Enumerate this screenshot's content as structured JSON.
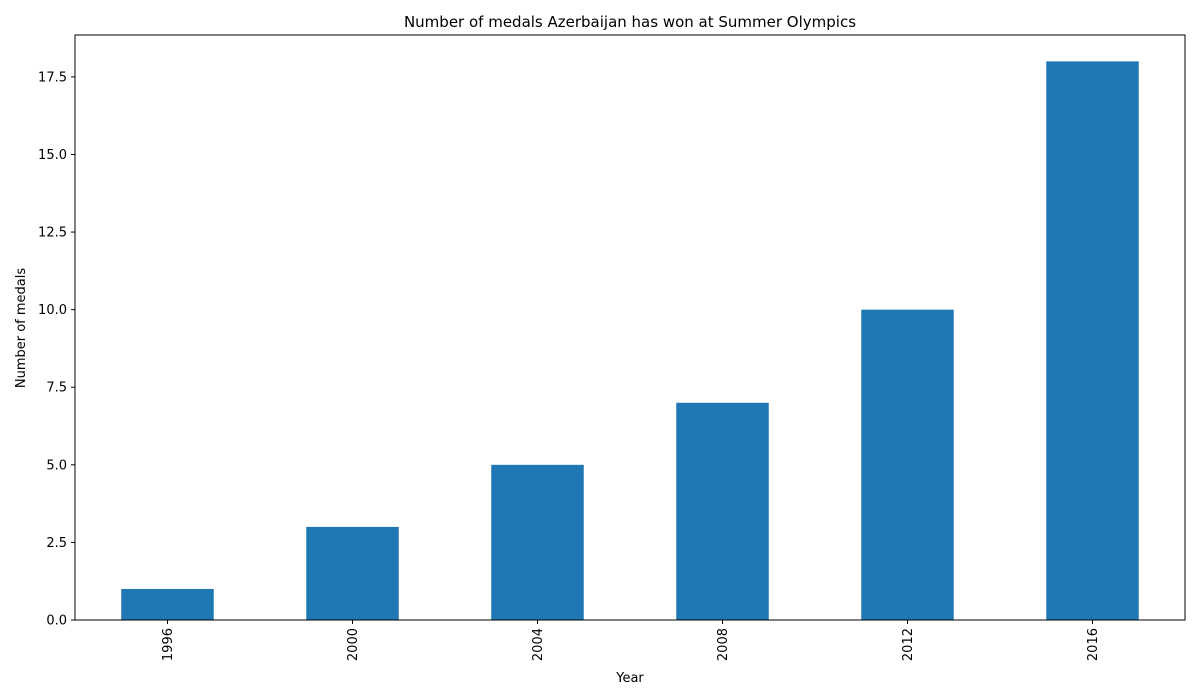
{
  "chart_data": {
    "type": "bar",
    "title": "Number of medals Azerbaijan has won at Summer Olympics",
    "xlabel": "Year",
    "ylabel": "Number of medals",
    "categories": [
      "1996",
      "2000",
      "2004",
      "2008",
      "2012",
      "2016"
    ],
    "values": [
      1,
      3,
      5,
      7,
      10,
      18
    ],
    "ylim": [
      0,
      18.85
    ],
    "yticks": [
      "0.0",
      "2.5",
      "5.0",
      "7.5",
      "10.0",
      "12.5",
      "15.0",
      "17.5"
    ],
    "ytick_values": [
      0,
      2.5,
      5,
      7.5,
      10,
      12.5,
      15,
      17.5
    ],
    "xtick_rotation": "vertical",
    "grid": false,
    "legend": "none",
    "bar_color": "#1f77b4"
  }
}
